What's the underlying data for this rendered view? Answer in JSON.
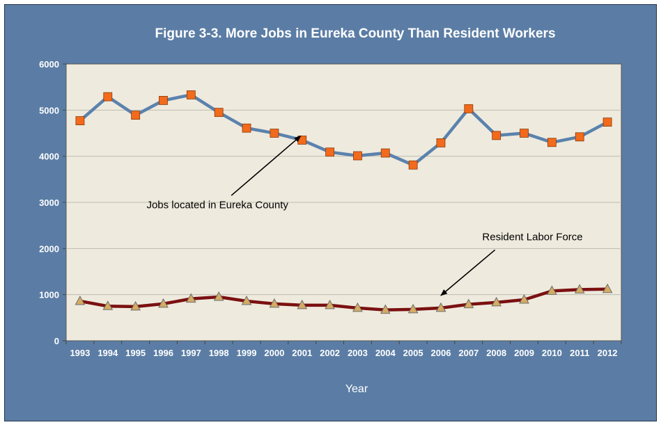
{
  "chart_data": {
    "type": "line",
    "title": "Figure 3-3. More Jobs in Eureka County Than Resident Workers",
    "xlabel": "Year",
    "ylabel": "",
    "ylim": [
      0,
      6000
    ],
    "yticks": [
      0,
      1000,
      2000,
      3000,
      4000,
      5000,
      6000
    ],
    "grid": "horizontal",
    "categories": [
      "1993",
      "1994",
      "1995",
      "1996",
      "1997",
      "1998",
      "1999",
      "2000",
      "2001",
      "2002",
      "2003",
      "2004",
      "2005",
      "2006",
      "2007",
      "2008",
      "2009",
      "2010",
      "2011",
      "2012"
    ],
    "series": [
      {
        "name": "Jobs located in Eureka County",
        "color": "#5b82ad",
        "marker": "square",
        "marker_color": "#f26a1b",
        "values": [
          4770,
          5290,
          4890,
          5210,
          5330,
          4950,
          4610,
          4500,
          4350,
          4090,
          4010,
          4070,
          3810,
          4290,
          5030,
          4450,
          4500,
          4300,
          4420,
          4740
        ]
      },
      {
        "name": "Resident Labor Force",
        "color": "#7b1010",
        "marker": "triangle",
        "marker_color": "#d4ac62",
        "values": [
          860,
          750,
          740,
          800,
          910,
          950,
          860,
          800,
          770,
          770,
          710,
          670,
          680,
          710,
          790,
          830,
          890,
          1080,
          1110,
          1120
        ]
      }
    ],
    "annotations": [
      {
        "text": "Jobs located in Eureka County",
        "series": 0,
        "point_index": 8
      },
      {
        "text": "Resident Labor Force",
        "series": 1,
        "point_index": 13
      }
    ]
  }
}
